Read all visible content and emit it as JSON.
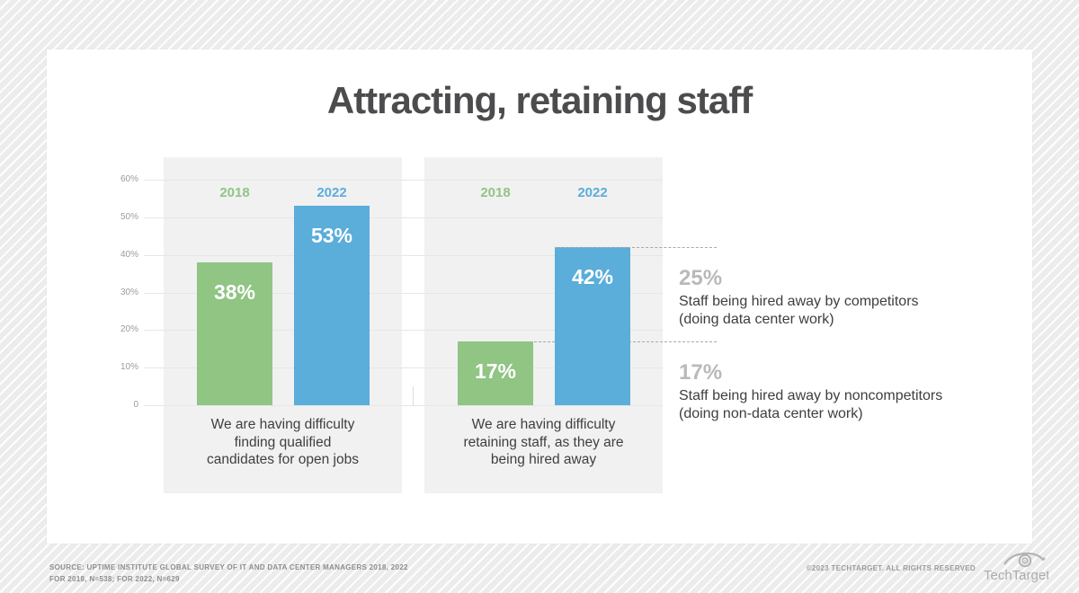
{
  "title": "Attracting, retaining staff",
  "chart_data": {
    "type": "bar",
    "unit": "%",
    "y_axis": {
      "min": 0,
      "max": 60,
      "step": 10,
      "tick_labels": [
        "60%",
        "50%",
        "40%",
        "30%",
        "20%",
        "10%",
        "0"
      ],
      "grid": true
    },
    "series": [
      {
        "name": "2018",
        "color": "#90c584"
      },
      {
        "name": "2022",
        "color": "#5badda"
      }
    ],
    "groups": [
      {
        "caption_lines": [
          "We are having difficulty",
          "finding qualified",
          "candidates for open jobs"
        ],
        "values": [
          38,
          53
        ],
        "labels": [
          "38%",
          "53%"
        ]
      },
      {
        "caption_lines": [
          "We are having difficulty",
          "retaining staff, as they are",
          "being hired away"
        ],
        "values": [
          17,
          42
        ],
        "labels": [
          "17%",
          "42%"
        ]
      }
    ],
    "annotations": [
      {
        "value": "25%",
        "text_lines": [
          "Staff being hired away by competitors",
          "(doing data center work)"
        ],
        "attached_bar": {
          "group": 1,
          "series": 1
        }
      },
      {
        "value": "17%",
        "text_lines": [
          "Staff being hired away by noncompetitors",
          "(doing non-data center work)"
        ],
        "attached_bar": {
          "group": 1,
          "series": 0
        }
      }
    ]
  },
  "colors": {
    "green": "#90c584",
    "blue": "#5badda",
    "panel_background": "#f1f1f2",
    "annotation_value_gray": "#b9b9b9",
    "title_gray": "#4c4c4e",
    "dashed_line": "#a9a9a9"
  },
  "footer": {
    "source_line1": "SOURCE: UPTIME INSTITUTE GLOBAL SURVEY OF IT AND DATA CENTER MANAGERS 2018, 2022",
    "source_line2": "FOR 2018, N=538; FOR 2022, N=629",
    "copyright": "©2023 TECHTARGET. ALL RIGHTS RESERVED",
    "logo_text": "TechTarget"
  }
}
